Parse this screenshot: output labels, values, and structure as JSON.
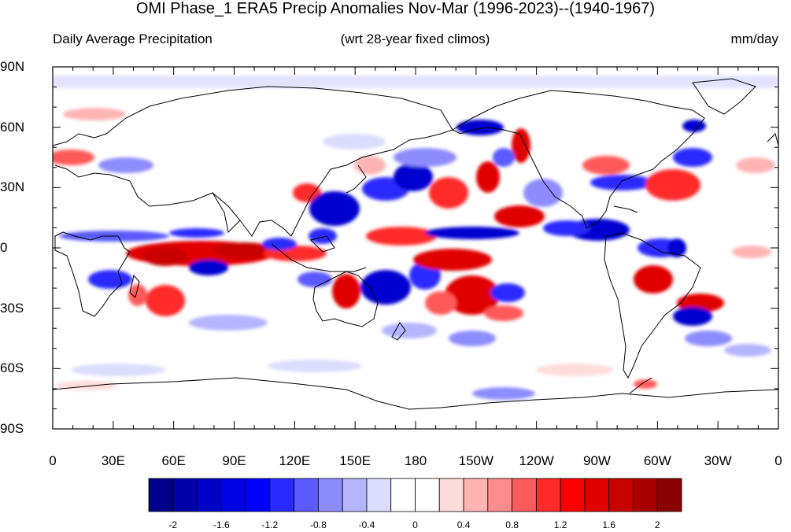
{
  "title": "OMI Phase_1 ERA5 Precip Anomalies Nov-Mar (1996-2023)--(1940-1967)",
  "subtitle_left": "Daily Average Precipitation",
  "subtitle_center": "(wrt 28-year fixed climos)",
  "subtitle_right": "mm/day",
  "lat_labels": [
    "90N",
    "60N",
    "30N",
    "0",
    "30S",
    "60S",
    "90S"
  ],
  "lon_labels": [
    "0",
    "30E",
    "60E",
    "90E",
    "120E",
    "150E",
    "180",
    "150W",
    "120W",
    "90W",
    "60W",
    "30W",
    "0"
  ],
  "colorbar": {
    "colors": [
      "#00008b",
      "#0000a8",
      "#0000c8",
      "#0000e0",
      "#0000ff",
      "#2a2aff",
      "#5a5aff",
      "#8c8cff",
      "#b4b4ff",
      "#dcdcff",
      "#ffffff",
      "#ffffff",
      "#ffdcdc",
      "#ffb4b4",
      "#ff8c8c",
      "#ff5a5a",
      "#ff2a2a",
      "#ff0000",
      "#e00000",
      "#c80000",
      "#a80000",
      "#8b0000"
    ],
    "tick_labels": [
      "-2",
      "-1.6",
      "-1.2",
      "-0.8",
      "-0.4",
      "0",
      "0.4",
      "0.8",
      "1.2",
      "1.6",
      "2"
    ]
  },
  "anomaly_colors": {
    "strong_negative": "#0000d0",
    "negative": "#5a5aff",
    "weak_negative": "#b4b4ff",
    "weak_positive": "#ffb4b4",
    "positive": "#ff5a5a",
    "strong_positive": "#e00000"
  }
}
